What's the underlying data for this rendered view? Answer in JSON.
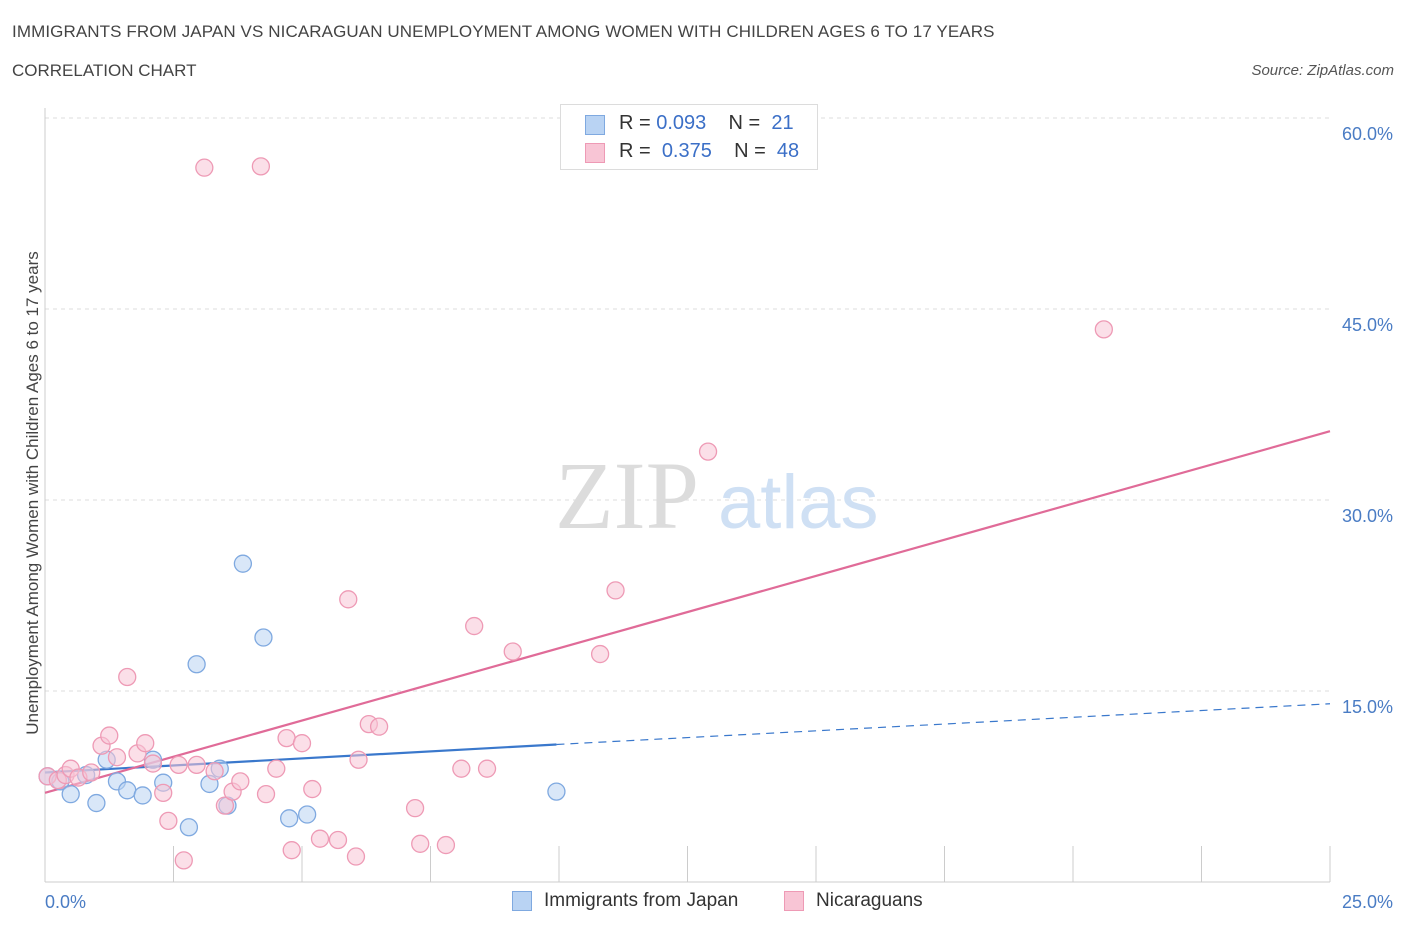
{
  "title": "IMMIGRANTS FROM JAPAN VS NICARAGUAN UNEMPLOYMENT AMONG WOMEN WITH CHILDREN AGES 6 TO 17 YEARS",
  "subtitle": "CORRELATION CHART",
  "source": "Source: ZipAtlas.com",
  "watermark": {
    "zip": "ZIP",
    "atlas": "atlas"
  },
  "legend": {
    "japan": {
      "r_label": "R =",
      "r_value": "0.093",
      "n_label": "N =",
      "n_value": "21"
    },
    "nicaragua": {
      "r_label": "R =",
      "r_value": "0.375",
      "n_label": "N =",
      "n_value": "48"
    }
  },
  "bottom_legend": {
    "japan": "Immigrants from Japan",
    "nicaragua": "Nicaraguans"
  },
  "colors": {
    "japan_fill": "#b9d3f3",
    "japan_stroke": "#7fa9e0",
    "japan_line": "#3a78cc",
    "nicaragua_fill": "#f8c5d5",
    "nicaragua_stroke": "#ee9ab5",
    "nicaragua_line": "#e06b98",
    "grid": "#dddddd",
    "tick_label": "#4a7cc4"
  },
  "chart_data": {
    "type": "scatter",
    "title": "IMMIGRANTS FROM JAPAN VS NICARAGUAN UNEMPLOYMENT AMONG WOMEN WITH CHILDREN AGES 6 TO 17 YEARS",
    "xlabel": "",
    "ylabel": "Unemployment Among Women with Children Ages 6 to 17 years",
    "xlim": [
      0,
      25
    ],
    "ylim": [
      0,
      60
    ],
    "x_tick_labels": [
      "0.0%",
      "25.0%"
    ],
    "y_ticks": [
      15,
      30,
      45,
      60
    ],
    "y_tick_labels": [
      "15.0%",
      "30.0%",
      "45.0%",
      "60.0%"
    ],
    "grid": true,
    "legend_position": "top-center",
    "series": [
      {
        "name": "Immigrants from Japan",
        "points": [
          [
            0.05,
            8.3
          ],
          [
            0.3,
            7.9
          ],
          [
            0.5,
            6.9
          ],
          [
            0.8,
            8.4
          ],
          [
            1.0,
            6.2
          ],
          [
            1.2,
            9.6
          ],
          [
            1.4,
            7.9
          ],
          [
            1.6,
            7.2
          ],
          [
            1.9,
            6.8
          ],
          [
            2.1,
            9.6
          ],
          [
            2.3,
            7.8
          ],
          [
            2.8,
            4.3
          ],
          [
            2.95,
            17.1
          ],
          [
            3.2,
            7.7
          ],
          [
            3.4,
            8.9
          ],
          [
            3.55,
            6.0
          ],
          [
            3.85,
            25.0
          ],
          [
            4.25,
            19.2
          ],
          [
            4.75,
            5.0
          ],
          [
            5.1,
            5.3
          ],
          [
            9.95,
            7.1
          ]
        ],
        "trend": {
          "x_start": 0,
          "y_start": 8.6,
          "x_solid_end": 9.95,
          "y_solid_end": 10.8,
          "x_end": 25,
          "y_end": 14.0
        }
      },
      {
        "name": "Nicaraguans",
        "points": [
          [
            0.05,
            8.3
          ],
          [
            0.25,
            8.0
          ],
          [
            0.4,
            8.4
          ],
          [
            0.5,
            8.9
          ],
          [
            0.65,
            8.2
          ],
          [
            0.9,
            8.6
          ],
          [
            1.1,
            10.7
          ],
          [
            1.25,
            11.5
          ],
          [
            1.4,
            9.8
          ],
          [
            1.6,
            16.1
          ],
          [
            1.8,
            10.1
          ],
          [
            1.95,
            10.9
          ],
          [
            2.1,
            9.3
          ],
          [
            2.3,
            7.0
          ],
          [
            2.4,
            4.8
          ],
          [
            2.6,
            9.2
          ],
          [
            2.7,
            1.7
          ],
          [
            2.95,
            9.2
          ],
          [
            3.1,
            56.1
          ],
          [
            3.3,
            8.7
          ],
          [
            3.5,
            6.0
          ],
          [
            3.65,
            7.1
          ],
          [
            3.8,
            7.9
          ],
          [
            4.2,
            56.2
          ],
          [
            4.3,
            6.9
          ],
          [
            4.5,
            8.9
          ],
          [
            4.7,
            11.3
          ],
          [
            4.8,
            2.5
          ],
          [
            5.0,
            10.9
          ],
          [
            5.2,
            7.3
          ],
          [
            5.35,
            3.4
          ],
          [
            5.7,
            3.3
          ],
          [
            5.9,
            22.2
          ],
          [
            6.05,
            2.0
          ],
          [
            6.1,
            9.6
          ],
          [
            6.3,
            12.4
          ],
          [
            6.5,
            12.2
          ],
          [
            7.2,
            5.8
          ],
          [
            7.3,
            3.0
          ],
          [
            7.8,
            2.9
          ],
          [
            8.1,
            8.9
          ],
          [
            8.35,
            20.1
          ],
          [
            8.6,
            8.9
          ],
          [
            9.1,
            18.1
          ],
          [
            10.8,
            17.9
          ],
          [
            11.1,
            22.9
          ],
          [
            12.9,
            33.8
          ],
          [
            20.6,
            43.4
          ]
        ],
        "trend": {
          "x_start": 0,
          "y_start": 7.0,
          "x_end": 25,
          "y_end": 35.4
        }
      }
    ]
  }
}
